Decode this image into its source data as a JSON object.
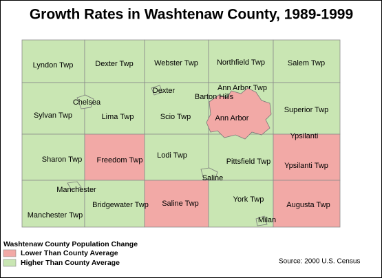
{
  "title": "Growth Rates in Washtenaw County, 1989-1999",
  "townships": [
    {
      "label": "Lyndon Twp",
      "color": "#c9e6b3"
    },
    {
      "label": "Dexter Twp",
      "color": "#c9e6b3"
    },
    {
      "label": "Webster Twp",
      "color": "#c9e6b3"
    },
    {
      "label": "Northfield Twp",
      "color": "#c9e6b3"
    },
    {
      "label": "Salem Twp",
      "color": "#c9e6b3"
    },
    {
      "label": "Sylvan Twp",
      "color": "#c9e6b3"
    },
    {
      "label": "Lima Twp",
      "color": "#c9e6b3"
    },
    {
      "label": "Scio Twp",
      "color": "#c9e6b3"
    },
    {
      "label": "Ann Arbor Twp",
      "color": "#c9e6b3"
    },
    {
      "label": "Superior Twp",
      "color": "#c9e6b3"
    },
    {
      "label": "Sharon Twp",
      "color": "#c9e6b3"
    },
    {
      "label": "Freedom Twp",
      "color": "#f2a9a6"
    },
    {
      "label": "Lodi Twp",
      "color": "#c9e6b3"
    },
    {
      "label": "Pittsfield Twp",
      "color": "#c9e6b3"
    },
    {
      "label": "Ypsilanti Twp",
      "color": "#f2a9a6"
    },
    {
      "label": "Manchester Twp",
      "color": "#c9e6b3"
    },
    {
      "label": "Bridgewater Twp",
      "color": "#c9e6b3"
    },
    {
      "label": "Saline Twp",
      "color": "#f2a9a6"
    },
    {
      "label": "York Twp",
      "color": "#c9e6b3"
    },
    {
      "label": "Augusta Twp",
      "color": "#f2a9a6"
    }
  ],
  "cities": [
    {
      "label": "Chelsea"
    },
    {
      "label": "Dexter"
    },
    {
      "label": "Barton Hills"
    },
    {
      "label": "Ann Arbor",
      "color": "#f2a9a6"
    },
    {
      "label": "Ypsilanti"
    },
    {
      "label": "Saline"
    },
    {
      "label": "Manchester"
    },
    {
      "label": "Milan"
    }
  ],
  "legend": {
    "title": "Washtenaw County Population Change",
    "items": [
      {
        "label": "Lower Than County Average",
        "color": "#f2a9a6"
      },
      {
        "label": "Higher Than County Average",
        "color": "#c9e6b3"
      }
    ]
  },
  "source": "Source: 2000 U.S. Census"
}
